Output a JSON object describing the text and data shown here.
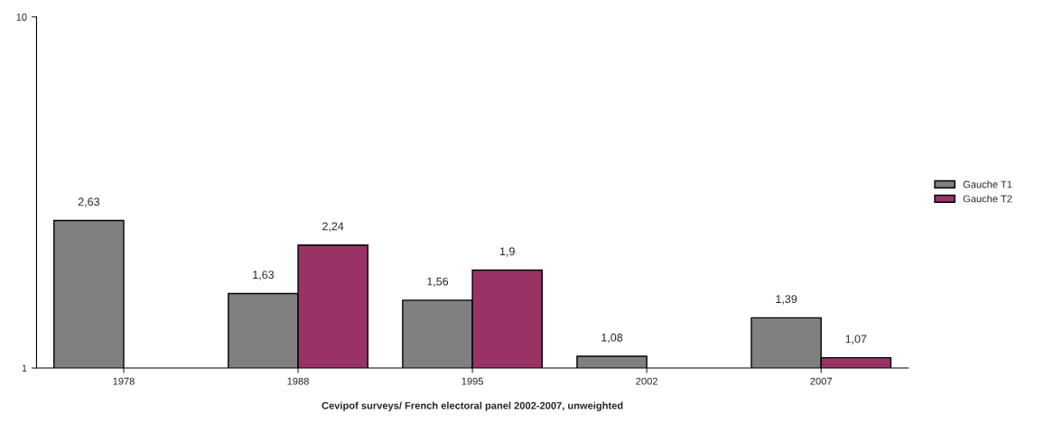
{
  "chart_data": {
    "type": "bar",
    "xlabel": "Cevipof surveys/ French electoral panel 2002-2007, unweighted",
    "categories": [
      "1978",
      "1988",
      "1995",
      "2002",
      "2007"
    ],
    "series": [
      {
        "name": "Gauche T1",
        "color": "#808080",
        "values": [
          2.63,
          1.63,
          1.56,
          1.08,
          1.39
        ],
        "value_labels": [
          "2,63",
          "1,63",
          "1,56",
          "1,08",
          "1,39"
        ]
      },
      {
        "name": "Gauche T2",
        "color": "#993366",
        "values": [
          null,
          2.24,
          1.9,
          null,
          1.07
        ],
        "value_labels": [
          null,
          "2,24",
          "1,9",
          null,
          "1,07"
        ]
      }
    ],
    "log": "y",
    "ylim": [
      1,
      10
    ],
    "yticks": [
      1,
      10
    ],
    "grid": false,
    "legend": "right"
  }
}
